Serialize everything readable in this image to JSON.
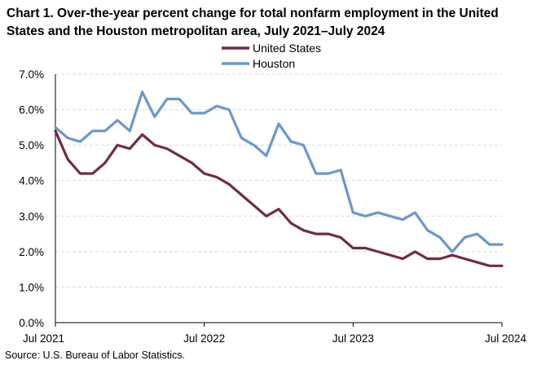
{
  "chart_data": {
    "type": "line",
    "title": "Chart 1. Over-the-year percent change for total nonfarm employment in the United States and the Houston metropolitan area, July 2021–July 2024",
    "source": "Source: U.S. Bureau of Labor Statistics.",
    "x_labels": [
      "Jul 2021",
      "Jul 2022",
      "Jul 2023",
      "Jul 2024"
    ],
    "y_ticks": [
      "0.0%",
      "1.0%",
      "2.0%",
      "3.0%",
      "4.0%",
      "5.0%",
      "6.0%",
      "7.0%"
    ],
    "ylim": [
      0,
      7
    ],
    "grid": true,
    "legend_position": "top-right",
    "series": [
      {
        "name": "United States",
        "color": "#722a4a",
        "values": [
          5.4,
          4.6,
          4.2,
          4.2,
          4.5,
          5.0,
          4.9,
          5.3,
          5.0,
          4.9,
          4.7,
          4.5,
          4.2,
          4.1,
          3.9,
          3.6,
          3.3,
          3.0,
          3.2,
          2.8,
          2.6,
          2.5,
          2.5,
          2.4,
          2.1,
          2.1,
          2.0,
          1.9,
          1.8,
          2.0,
          1.8,
          1.8,
          1.9,
          1.8,
          1.7,
          1.6,
          1.6
        ]
      },
      {
        "name": "Houston",
        "color": "#6a97d2",
        "values": [
          5.5,
          5.2,
          5.1,
          5.4,
          5.4,
          5.7,
          5.4,
          6.5,
          5.8,
          6.3,
          6.3,
          5.9,
          5.9,
          6.1,
          6.0,
          5.2,
          5.0,
          4.7,
          5.6,
          5.1,
          5.0,
          4.2,
          4.2,
          4.3,
          3.1,
          3.0,
          3.1,
          3.0,
          2.9,
          3.1,
          2.6,
          2.4,
          2.0,
          2.4,
          2.5,
          2.2,
          2.2
        ]
      }
    ]
  }
}
